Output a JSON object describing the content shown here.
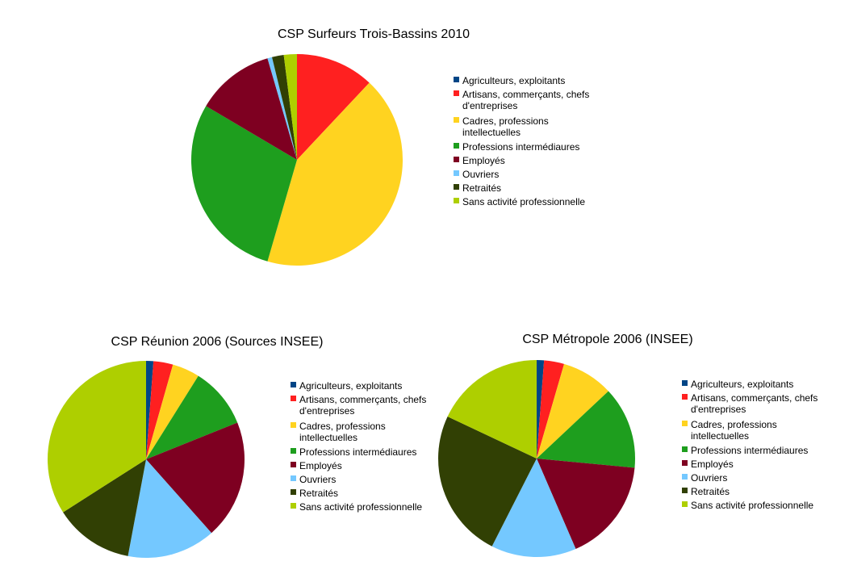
{
  "chart_data": [
    {
      "type": "pie",
      "title": "CSP Surfeurs Trois-Bassins 2010",
      "start_angle_deg": -90,
      "direction": "clockwise",
      "legend_position": "right",
      "categories": [
        "Agriculteurs, exploitants",
        "Artisans, commerçants, chefs d'entreprises",
        "Cadres, professions intellectuelles",
        "Professions intermédiaures",
        "Employés",
        "Ouvriers",
        "Retraités",
        "Sans activité professionnelle"
      ],
      "values": [
        0,
        12,
        42.5,
        29,
        12,
        0.7,
        1.8,
        2
      ],
      "unit": "%"
    },
    {
      "type": "pie",
      "title": "CSP Réunion 2006 (Sources INSEE)",
      "start_angle_deg": -90,
      "direction": "clockwise",
      "legend_position": "right",
      "categories": [
        "Agriculteurs, exploitants",
        "Artisans, commerçants, chefs d'entreprises",
        "Cadres, professions intellectuelles",
        "Professions intermédiaures",
        "Employés",
        "Ouvriers",
        "Retraités",
        "Sans activité professionnelle"
      ],
      "values": [
        1.2,
        3.2,
        4.5,
        10,
        19.5,
        14.5,
        13,
        34
      ],
      "unit": "%"
    },
    {
      "type": "pie",
      "title": "CSP Métropole 2006 (INSEE)",
      "start_angle_deg": -90,
      "direction": "clockwise",
      "legend_position": "right",
      "categories": [
        "Agriculteurs, exploitants",
        "Artisans, commerçants, chefs d'entreprises",
        "Cadres, professions intellectuelles",
        "Professions intermédiaures",
        "Employés",
        "Ouvriers",
        "Retraités",
        "Sans activité professionnelle"
      ],
      "values": [
        1.2,
        3.3,
        8.5,
        13.5,
        17,
        14,
        24.5,
        18
      ],
      "unit": "%"
    }
  ],
  "legend_labels": [
    [
      "Agriculteurs, exploitants"
    ],
    [
      "Artisans, commerçants, chefs",
      "d'entreprises"
    ],
    [
      "Cadres, professions",
      "intellectuelles"
    ],
    [
      "Professions intermédiaures"
    ],
    [
      "Employés"
    ],
    [
      "Ouvriers"
    ],
    [
      "Retraités"
    ],
    [
      "Sans activité professionnelle"
    ]
  ],
  "colors": [
    "#004586",
    "#ff2020",
    "#ffd320",
    "#1e9e1e",
    "#7e0021",
    "#74c8ff",
    "#314004",
    "#aecf00"
  ]
}
